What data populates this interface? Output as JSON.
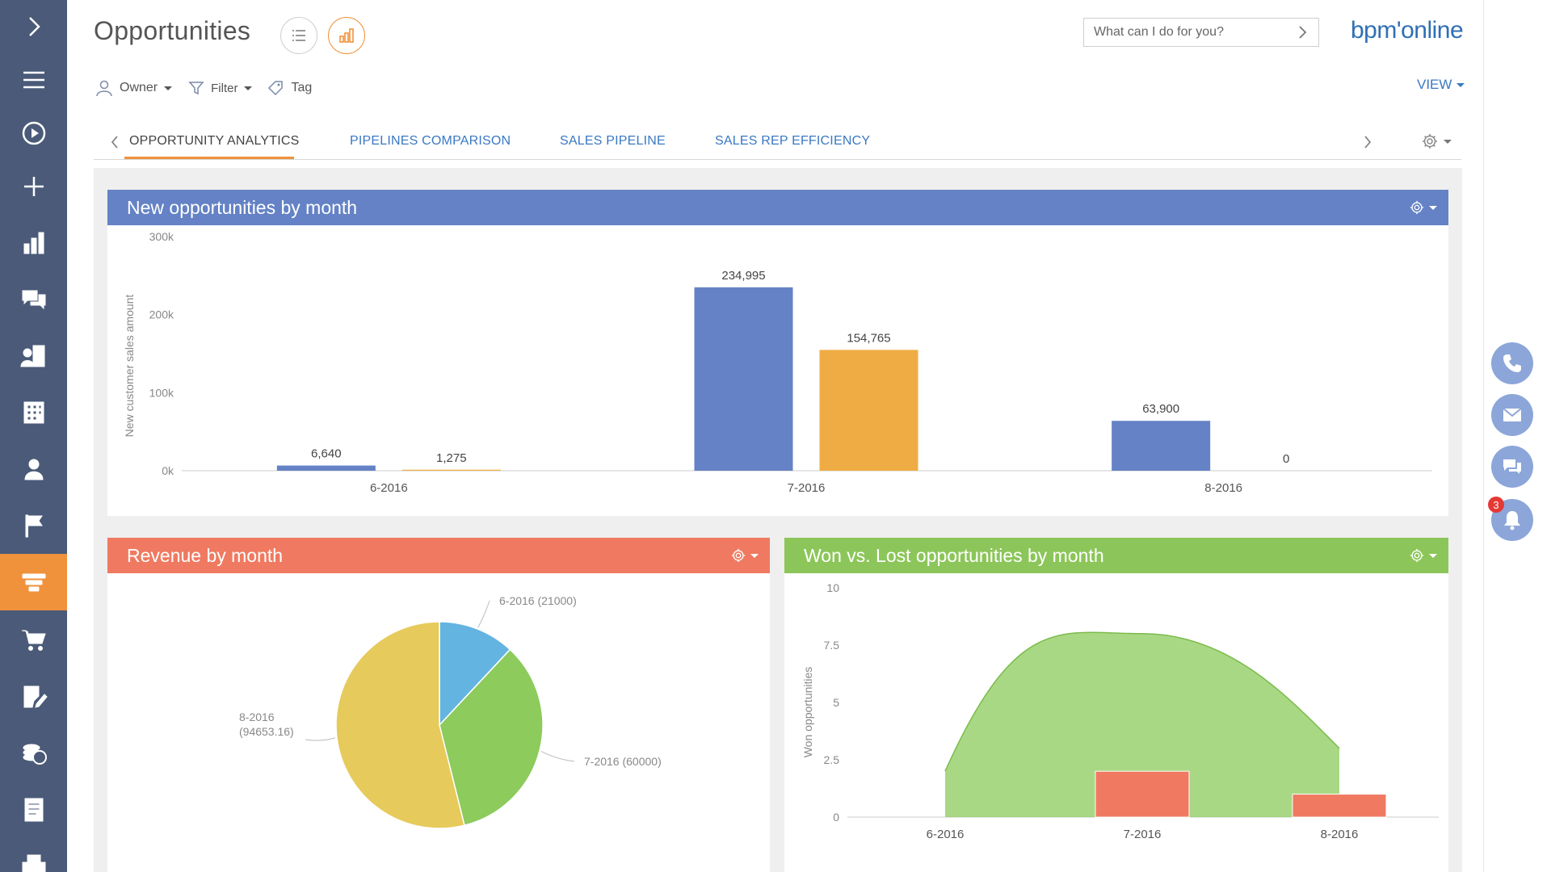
{
  "header": {
    "title": "Opportunities",
    "search_placeholder": "What can I do for you?",
    "logo": "bpm'online"
  },
  "toolbar": {
    "owner": "Owner",
    "filter": "Filter",
    "tag": "Tag",
    "view": "VIEW"
  },
  "tabs": [
    {
      "label": "OPPORTUNITY ANALYTICS",
      "active": true
    },
    {
      "label": "PIPELINES COMPARISON"
    },
    {
      "label": "SALES PIPELINE"
    },
    {
      "label": "SALES REP EFFICIENCY"
    }
  ],
  "sidebar": {
    "items": [
      "expand-icon",
      "menu-icon",
      "play-icon",
      "add-icon",
      "analytics-icon",
      "feed-icon",
      "accounts-icon",
      "companies-icon",
      "contacts-icon",
      "leads-icon",
      "opportunities-icon",
      "orders-icon",
      "contracts-icon",
      "invoices-icon",
      "documents-icon"
    ],
    "active_color": "#f0923c"
  },
  "rail": {
    "notifications_count": "3"
  },
  "colors": {
    "blue": "#6482c5",
    "orange": "#efac44",
    "red_head": "#ef7a61",
    "green_head": "#8cc65a"
  },
  "chart_data": [
    {
      "type": "bar",
      "title": "New opportunities by month",
      "ylabel": "New customer sales amount",
      "ylim": [
        0,
        300000
      ],
      "yticks": [
        "0k",
        "100k",
        "200k",
        "300k"
      ],
      "categories": [
        "6-2016",
        "7-2016",
        "8-2016"
      ],
      "series": [
        {
          "values": [
            6640,
            234995,
            63900
          ],
          "labels": [
            "6,640",
            "234,995",
            "63,900"
          ],
          "color": "#6482c5"
        },
        {
          "values": [
            1275,
            154765,
            0
          ],
          "labels": [
            "1,275",
            "154,765",
            "0"
          ],
          "color": "#efac44"
        }
      ],
      "grid": false
    },
    {
      "type": "pie",
      "title": "Revenue by month",
      "slices": [
        {
          "label": "6-2016 (21000)",
          "value": 21000,
          "color": "#63b4e1"
        },
        {
          "label": "7-2016 (60000)",
          "value": 60000,
          "color": "#8ccb5c"
        },
        {
          "label": "8-2016 (94653.16)",
          "label_line1": "8-2016",
          "label_line2": "(94653.16)",
          "value": 94653.16,
          "color": "#e6ca5c"
        }
      ]
    },
    {
      "type": "area",
      "title": "Won vs. Lost opportunities by month",
      "ylabel": "Won opportunities",
      "ylim": [
        0,
        10
      ],
      "yticks": [
        "0",
        "2.5",
        "5",
        "7.5",
        "10"
      ],
      "categories": [
        "6-2016",
        "7-2016",
        "8-2016"
      ],
      "series": [
        {
          "type": "area",
          "values": [
            2,
            8,
            3
          ],
          "color": "#8ccb5c"
        },
        {
          "type": "bar",
          "values": [
            0,
            2,
            1
          ],
          "color": "#ef7a61"
        }
      ]
    }
  ]
}
